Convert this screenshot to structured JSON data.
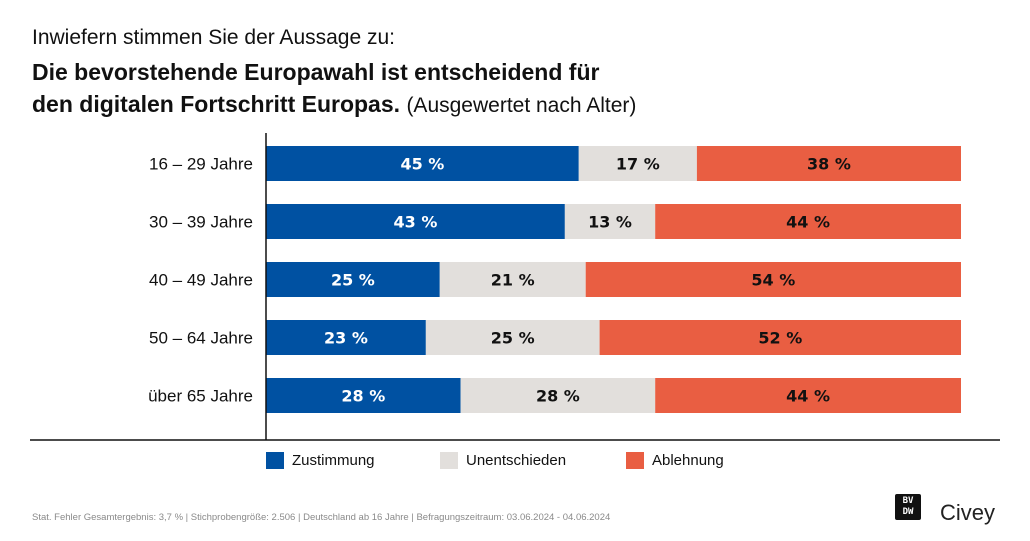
{
  "header": {
    "intro": "Inwiefern stimmen Sie der Aussage zu:",
    "title_line1": "Die bevorstehende Europawahl ist entscheidend für",
    "title_line2": "den digitalen Fortschritt Europas.",
    "subtitle": "(Ausgewertet nach Alter)"
  },
  "chart_data": {
    "type": "bar",
    "orientation": "horizontal",
    "stacked": true,
    "unit": "%",
    "categories": [
      "16 – 29 Jahre",
      "30 – 39 Jahre",
      "40 – 49 Jahre",
      "50 – 64 Jahre",
      "über 65 Jahre"
    ],
    "series": [
      {
        "name": "Zustimmung",
        "color": "#0051A2",
        "label_color": "#ffffff",
        "values": [
          45,
          43,
          25,
          23,
          28
        ]
      },
      {
        "name": "Unentschieden",
        "color": "#E2DFDC",
        "label_color": "#111111",
        "values": [
          17,
          13,
          21,
          25,
          28
        ]
      },
      {
        "name": "Ablehnung",
        "color": "#E95E42",
        "label_color": "#111111",
        "values": [
          38,
          44,
          54,
          52,
          44
        ]
      }
    ],
    "data_labels": [
      [
        "45 %",
        "17 %",
        "38 %"
      ],
      [
        "43 %",
        "13 %",
        "44 %"
      ],
      [
        "25 %",
        "21 %",
        "54 %"
      ],
      [
        "23 %",
        "25 %",
        "52 %"
      ],
      [
        "28 %",
        "28 %",
        "44 %"
      ]
    ],
    "xlim": [
      0,
      100
    ],
    "grid": false,
    "legend_position": "bottom-center"
  },
  "legend": {
    "items": [
      {
        "label": "Zustimmung",
        "color": "#0051A2"
      },
      {
        "label": "Unentschieden",
        "color": "#E2DFDC"
      },
      {
        "label": "Ablehnung",
        "color": "#E95E42"
      }
    ]
  },
  "footer": {
    "note": "Stat. Fehler Gesamtergebnis: 3,7 % | Stichprobengröße: 2.506 | Deutschland ab 16 Jahre | Befragungszeitraum: 03.06.2024 - 04.06.2024",
    "brand_bvdw": "BVDW",
    "brand_civey": "Civey"
  }
}
